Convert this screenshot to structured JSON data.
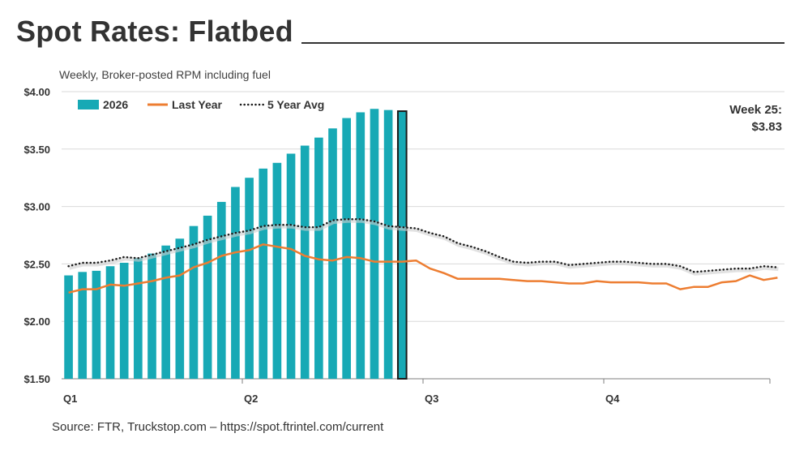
{
  "header": {
    "title": "Spot Rates: Flatbed",
    "subtitle": "Weekly, Broker-posted RPM including fuel"
  },
  "footer": {
    "source": "Source: FTR, Truckstop.com – https://spot.ftrintel.com/current"
  },
  "callout": {
    "week": "Week 25:",
    "value": "$3.83"
  },
  "colors": {
    "bars": "#17a9b5",
    "highlight_bar": "#17a9b5",
    "highlight_outline": "#1a1a1a",
    "last_year": "#ed7d31",
    "five_year_avg": "#1a1a1a",
    "grid": "#d9d9d9",
    "axis": "#7f7f7f",
    "text": "#333333"
  },
  "chart_data": {
    "type": "bar",
    "ylim": [
      1.5,
      4.0
    ],
    "y_ticks": [
      {
        "value": 4.0,
        "label": "$4.00"
      },
      {
        "value": 3.5,
        "label": "$3.50"
      },
      {
        "value": 3.0,
        "label": "$3.00"
      },
      {
        "value": 2.5,
        "label": "$2.50"
      },
      {
        "value": 2.0,
        "label": "$2.00"
      },
      {
        "value": 1.5,
        "label": "$1.50"
      }
    ],
    "x_ticks": [
      {
        "week": 1,
        "label": "Q1"
      },
      {
        "week": 14,
        "label": "Q2"
      },
      {
        "week": 27,
        "label": "Q3"
      },
      {
        "week": 40,
        "label": "Q4"
      }
    ],
    "weeks_total": 52,
    "grid": true,
    "legend_position": "top-left",
    "series": [
      {
        "name": "2026",
        "type": "bar",
        "highlight_last": true,
        "values": [
          2.4,
          2.43,
          2.44,
          2.48,
          2.51,
          2.55,
          2.59,
          2.66,
          2.72,
          2.83,
          2.92,
          3.04,
          3.17,
          3.25,
          3.33,
          3.38,
          3.46,
          3.53,
          3.6,
          3.68,
          3.77,
          3.82,
          3.85,
          3.84,
          3.83
        ]
      },
      {
        "name": "Last Year",
        "type": "line",
        "values": [
          2.25,
          2.28,
          2.28,
          2.32,
          2.31,
          2.33,
          2.35,
          2.38,
          2.4,
          2.47,
          2.51,
          2.57,
          2.6,
          2.62,
          2.67,
          2.65,
          2.63,
          2.57,
          2.54,
          2.53,
          2.56,
          2.55,
          2.52,
          2.52,
          2.52,
          2.53,
          2.46,
          2.42,
          2.37,
          2.37,
          2.37,
          2.37,
          2.36,
          2.35,
          2.35,
          2.34,
          2.33,
          2.33,
          2.35,
          2.34,
          2.34,
          2.34,
          2.33,
          2.33,
          2.28,
          2.3,
          2.3,
          2.34,
          2.35,
          2.4,
          2.36,
          2.38
        ]
      },
      {
        "name": "5 Year Avg",
        "type": "dotted-line",
        "values": [
          2.48,
          2.51,
          2.51,
          2.53,
          2.56,
          2.55,
          2.58,
          2.61,
          2.64,
          2.67,
          2.71,
          2.74,
          2.77,
          2.79,
          2.83,
          2.84,
          2.84,
          2.82,
          2.82,
          2.88,
          2.89,
          2.89,
          2.87,
          2.83,
          2.82,
          2.81,
          2.77,
          2.74,
          2.68,
          2.65,
          2.61,
          2.56,
          2.52,
          2.51,
          2.52,
          2.52,
          2.49,
          2.5,
          2.51,
          2.52,
          2.52,
          2.51,
          2.5,
          2.5,
          2.48,
          2.43,
          2.44,
          2.45,
          2.46,
          2.46,
          2.48,
          2.47
        ]
      }
    ]
  }
}
